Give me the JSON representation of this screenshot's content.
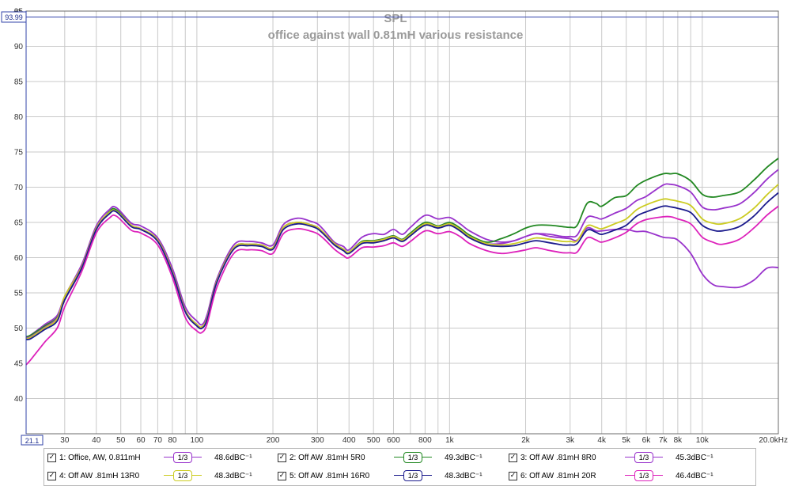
{
  "chart_data": {
    "type": "line",
    "title": "SPL",
    "subtitle": "office against wall 0.81mH various resistance",
    "ylabel_unit": "dB",
    "x_scale": "log",
    "xlim": [
      21.1,
      20000
    ],
    "ylim": [
      35,
      95
    ],
    "y_cursor_value": "93.99",
    "x_start_label": "21.1",
    "y_ticks": [
      "40",
      "45",
      "50",
      "55",
      "60",
      "65",
      "70",
      "75",
      "80",
      "85",
      "90",
      "95"
    ],
    "x_ticks": [
      {
        "v": 30,
        "label": "30"
      },
      {
        "v": 40,
        "label": "40"
      },
      {
        "v": 50,
        "label": "50"
      },
      {
        "v": 60,
        "label": "60"
      },
      {
        "v": 70,
        "label": "70"
      },
      {
        "v": 80,
        "label": "80"
      },
      {
        "v": 100,
        "label": "100"
      },
      {
        "v": 200,
        "label": "200"
      },
      {
        "v": 300,
        "label": "300"
      },
      {
        "v": 400,
        "label": "400"
      },
      {
        "v": 500,
        "label": "500"
      },
      {
        "v": 600,
        "label": "600"
      },
      {
        "v": 800,
        "label": "800"
      },
      {
        "v": 1000,
        "label": "1k"
      },
      {
        "v": 2000,
        "label": "2k"
      },
      {
        "v": 3000,
        "label": "3k"
      },
      {
        "v": 4000,
        "label": "4k"
      },
      {
        "v": 5000,
        "label": "5k"
      },
      {
        "v": 6000,
        "label": "6k"
      },
      {
        "v": 7000,
        "label": "7k"
      },
      {
        "v": 8000,
        "label": "8k"
      },
      {
        "v": 10000,
        "label": "10k"
      },
      {
        "v": 20000,
        "label": "20.0kHz"
      }
    ],
    "grid": true,
    "legend_position": "bottom",
    "base_x": [
      21.1,
      22,
      25,
      28,
      30,
      35,
      40,
      45,
      48,
      55,
      60,
      70,
      80,
      90,
      100,
      105,
      110,
      120,
      140,
      160,
      180,
      200,
      220,
      250,
      280,
      300,
      320,
      350,
      380,
      400,
      450,
      500,
      550,
      600,
      650,
      700,
      800,
      900,
      1000,
      1100,
      1200,
      1400,
      1600,
      1800,
      2000,
      2200,
      2500,
      2800,
      3000,
      3200,
      3500,
      3800,
      4000,
      4500,
      5000,
      5500,
      6000,
      7000,
      7500,
      8000,
      9000,
      10000,
      11000,
      12000,
      14000,
      16000,
      18000,
      20000
    ],
    "series": [
      {
        "name": "1: Office, AW, 0.811mH",
        "color": "#9933cc",
        "smoothing": "1/3",
        "level": "48.6dBC",
        "y": [
          48.7,
          49.0,
          50.5,
          51.8,
          54.5,
          59.0,
          64.5,
          66.8,
          67.1,
          64.9,
          64.5,
          62.8,
          58.5,
          53.0,
          51.0,
          50.5,
          52.0,
          57.0,
          61.8,
          62.3,
          62.1,
          61.8,
          64.7,
          65.6,
          65.2,
          64.8,
          63.8,
          62.2,
          61.6,
          61.1,
          62.9,
          63.4,
          63.3,
          64.0,
          63.3,
          64.3,
          66.0,
          65.5,
          65.7,
          64.8,
          63.8,
          62.6,
          62.2,
          62.4,
          63.0,
          63.4,
          63.0,
          62.8,
          62.7,
          62.5,
          64.2,
          63.8,
          63.8,
          64.0,
          64.0,
          63.7,
          63.7,
          62.9,
          62.8,
          62.5,
          60.6,
          57.7,
          56.2,
          55.9,
          55.8,
          56.8,
          58.5,
          58.6
        ]
      },
      {
        "name": "2: Off AW .81mH 5R0",
        "color": "#228822",
        "smoothing": "1/3",
        "level": "49.3dBC",
        "y": [
          48.8,
          49.0,
          50.3,
          51.5,
          54.0,
          58.5,
          64.0,
          66.5,
          66.8,
          64.6,
          64.1,
          62.5,
          58.0,
          52.5,
          50.5,
          50.2,
          51.5,
          56.7,
          61.4,
          61.9,
          61.8,
          61.4,
          64.3,
          65.0,
          64.7,
          64.3,
          63.4,
          62.0,
          61.2,
          60.8,
          62.3,
          62.4,
          62.7,
          63.1,
          62.6,
          63.5,
          65.0,
          64.5,
          65.0,
          64.2,
          63.2,
          62.2,
          62.7,
          63.4,
          64.2,
          64.6,
          64.6,
          64.4,
          64.3,
          64.6,
          67.7,
          67.7,
          67.3,
          68.5,
          68.8,
          70.2,
          71.0,
          71.9,
          71.9,
          71.9,
          70.9,
          69.0,
          68.6,
          68.8,
          69.3,
          71.0,
          72.8,
          74.1
        ]
      },
      {
        "name": "3: Off AW .81mH 8R0",
        "color": "#9933cc",
        "smoothing": "1/3",
        "level": "45.3dBC",
        "y": [
          48.6,
          48.8,
          50.1,
          51.4,
          54.0,
          58.5,
          64.0,
          66.3,
          66.6,
          64.6,
          64.1,
          62.5,
          58.0,
          52.5,
          50.5,
          50.2,
          51.5,
          56.7,
          61.4,
          61.9,
          61.8,
          61.4,
          64.3,
          65.0,
          64.7,
          64.3,
          63.4,
          62.0,
          61.2,
          60.8,
          62.2,
          62.3,
          62.6,
          63.0,
          62.5,
          63.3,
          64.8,
          64.4,
          64.8,
          64.0,
          63.0,
          62.0,
          62.0,
          62.4,
          63.0,
          63.4,
          63.3,
          63.0,
          63.0,
          63.2,
          65.7,
          65.7,
          65.5,
          66.3,
          67.0,
          68.1,
          68.7,
          70.3,
          70.4,
          70.2,
          69.3,
          67.2,
          66.8,
          67.0,
          67.6,
          69.2,
          71.1,
          72.5
        ]
      },
      {
        "name": "4: Off AW .81mH 13R0",
        "color": "#cccc22",
        "smoothing": "1/3",
        "level": "48.3dBC",
        "y": [
          48.5,
          48.7,
          50.0,
          51.3,
          54.5,
          58.7,
          64.2,
          66.4,
          66.6,
          64.6,
          64.1,
          62.5,
          58.0,
          52.5,
          50.5,
          50.2,
          51.5,
          56.7,
          61.4,
          61.9,
          61.8,
          61.4,
          64.3,
          65.0,
          64.7,
          64.3,
          63.4,
          62.0,
          61.2,
          60.8,
          62.2,
          62.3,
          62.6,
          63.0,
          62.5,
          63.3,
          64.8,
          64.4,
          64.8,
          64.0,
          63.0,
          62.0,
          61.8,
          62.0,
          62.4,
          62.8,
          62.6,
          62.3,
          62.3,
          62.4,
          64.5,
          64.3,
          64.1,
          64.8,
          65.5,
          66.8,
          67.5,
          68.3,
          68.2,
          68.0,
          67.4,
          65.5,
          64.9,
          64.8,
          65.5,
          67.0,
          68.9,
          70.4
        ]
      },
      {
        "name": "5: Off AW .81mH 16R0",
        "color": "#1a1a8c",
        "smoothing": "1/3",
        "level": "48.3dBC",
        "y": [
          48.4,
          48.5,
          49.8,
          51.0,
          54.0,
          58.5,
          64.0,
          66.2,
          66.5,
          64.4,
          64.0,
          62.3,
          57.8,
          52.3,
          50.3,
          50.0,
          51.3,
          56.5,
          61.2,
          61.7,
          61.6,
          61.2,
          64.0,
          64.8,
          64.5,
          64.1,
          63.2,
          61.8,
          61.0,
          60.6,
          62.0,
          62.1,
          62.4,
          62.8,
          62.3,
          63.1,
          64.6,
          64.2,
          64.6,
          63.8,
          62.8,
          61.8,
          61.6,
          61.7,
          62.1,
          62.4,
          62.1,
          61.8,
          61.8,
          62.0,
          63.9,
          63.6,
          63.3,
          63.9,
          64.6,
          65.9,
          66.5,
          67.3,
          67.2,
          67.0,
          66.4,
          64.6,
          63.9,
          63.8,
          64.4,
          65.9,
          67.8,
          69.2
        ]
      },
      {
        "name": "6: Off AW .81mH 20R",
        "color": "#dd22bb",
        "smoothing": "1/3",
        "level": "46.4dBC",
        "y": [
          44.8,
          45.5,
          48.0,
          50.0,
          53.0,
          58.0,
          63.5,
          65.6,
          65.9,
          63.9,
          63.5,
          61.8,
          57.2,
          51.5,
          49.6,
          49.4,
          50.7,
          55.8,
          60.6,
          61.1,
          61.0,
          60.6,
          63.4,
          64.1,
          63.8,
          63.4,
          62.6,
          61.2,
          60.3,
          60.0,
          61.4,
          61.5,
          61.7,
          62.1,
          61.6,
          62.3,
          63.8,
          63.4,
          63.7,
          63.0,
          62.0,
          61.0,
          60.6,
          60.8,
          61.1,
          61.4,
          61.0,
          60.7,
          60.7,
          60.8,
          62.8,
          62.5,
          62.2,
          62.8,
          63.6,
          64.8,
          65.4,
          65.8,
          65.8,
          65.5,
          64.8,
          62.9,
          62.2,
          61.9,
          62.6,
          64.2,
          66.0,
          67.3
        ]
      }
    ]
  },
  "legend": {
    "check_glyph": "✓",
    "smoothing_label": "1/3",
    "level_suffix": "C⁻¹",
    "items": [
      {
        "label": "1: Office, AW, 0.811mH",
        "color": "#9933cc",
        "level": "48.6dB"
      },
      {
        "label": "2: Off AW .81mH 5R0",
        "color": "#228822",
        "level": "49.3dB"
      },
      {
        "label": "3: Off AW .81mH 8R0",
        "color": "#9933cc",
        "level": "45.3dB"
      },
      {
        "label": "4: Off AW .81mH 13R0",
        "color": "#cccc22",
        "level": "48.3dB"
      },
      {
        "label": "5: Off AW .81mH 16R0",
        "color": "#1a1a8c",
        "level": "48.3dB"
      },
      {
        "label": "6: Off AW .81mH 20R",
        "color": "#dd22bb",
        "level": "46.4dB"
      }
    ]
  }
}
